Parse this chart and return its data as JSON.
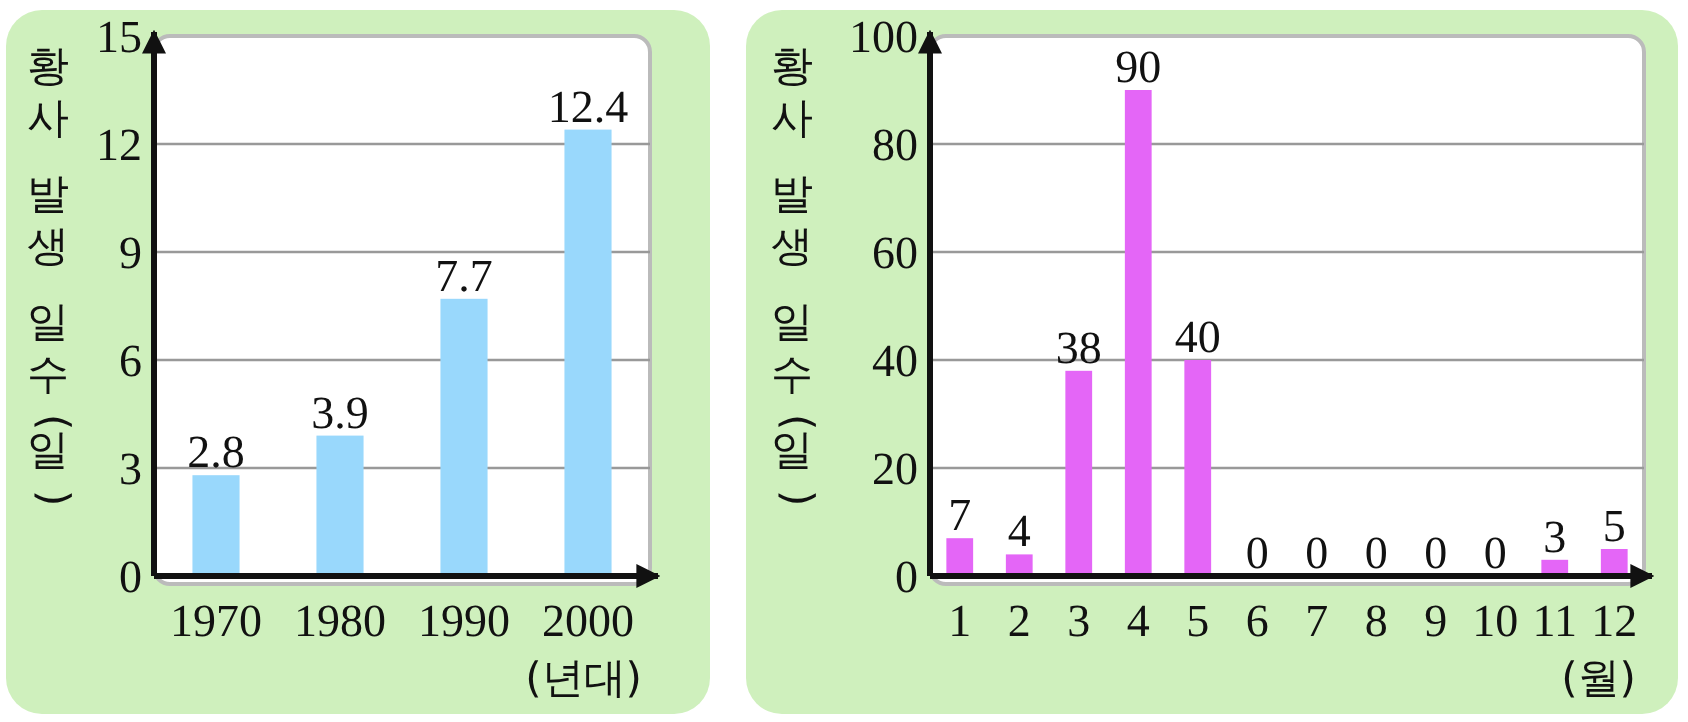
{
  "chart_data": [
    {
      "type": "bar",
      "ylabel": "황사 발생 일수(일)",
      "xlabel": "(년대)",
      "categories": [
        "1970",
        "1980",
        "1990",
        "2000"
      ],
      "values": [
        2.8,
        3.9,
        7.7,
        12.4
      ],
      "color": "#99d8fc",
      "ylim": [
        0,
        15
      ],
      "yticks": [
        0,
        3,
        6,
        9,
        12,
        15
      ],
      "grid": "y",
      "data_labels": true
    },
    {
      "type": "bar",
      "ylabel": "황사 발생 일수(일)",
      "xlabel": "(월)",
      "categories": [
        "1",
        "2",
        "3",
        "4",
        "5",
        "6",
        "7",
        "8",
        "9",
        "10",
        "11",
        "12"
      ],
      "values": [
        7,
        4,
        38,
        90,
        40,
        0,
        0,
        0,
        0,
        0,
        3,
        5
      ],
      "color": "#e466f7",
      "ylim": [
        0,
        100
      ],
      "yticks": [
        0,
        20,
        40,
        60,
        80,
        100
      ],
      "grid": "y",
      "data_labels": true
    }
  ]
}
